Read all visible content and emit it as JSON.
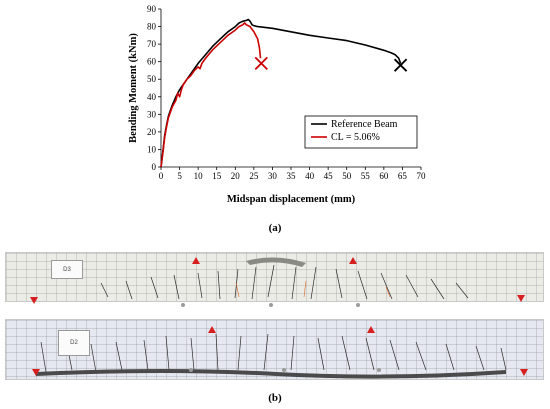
{
  "chart_data": {
    "type": "line",
    "xlabel": "Midspan displacement (mm)",
    "ylabel": "Bending Moment (kNm)",
    "xlim": [
      0,
      70
    ],
    "ylim": [
      0,
      90
    ],
    "xticks": [
      "0",
      "5",
      "10",
      "15",
      "20",
      "25",
      "30",
      "35",
      "40",
      "45",
      "50",
      "55",
      "60",
      "65",
      "70"
    ],
    "yticks": [
      "0",
      "10",
      "20",
      "30",
      "40",
      "50",
      "60",
      "70",
      "80",
      "90"
    ],
    "grid": false,
    "legend_position": "bottom-right",
    "series": [
      {
        "name": "Reference Beam",
        "color": "#000000",
        "x": [
          0,
          0.5,
          1,
          1.5,
          2,
          3,
          4,
          5,
          6,
          7,
          8,
          9,
          10,
          12,
          14,
          16,
          18,
          20,
          21,
          22,
          23,
          23.5,
          24,
          24.5,
          25,
          26,
          28,
          30,
          35,
          40,
          45,
          50,
          55,
          60,
          62,
          63,
          64,
          64.5
        ],
        "y": [
          0,
          9,
          18,
          24,
          29,
          35,
          40,
          44,
          47,
          50,
          53,
          56,
          59,
          64,
          69,
          73,
          77,
          80,
          82,
          83,
          83.5,
          84,
          83,
          81,
          80.5,
          80,
          79.5,
          79,
          77,
          75,
          73.5,
          72,
          69.5,
          66.5,
          65,
          64,
          62,
          59
        ]
      },
      {
        "name": "CL = 5.06%",
        "color": "#cc0000",
        "x": [
          0,
          0.5,
          1,
          1.5,
          2,
          3,
          4,
          4.5,
          5,
          5.5,
          6,
          7,
          8,
          9,
          10,
          10.5,
          11,
          12,
          14,
          16,
          18,
          20,
          21,
          22,
          22.5,
          23,
          24,
          25,
          26,
          26.5,
          26.8
        ],
        "y": [
          0,
          8,
          17,
          23,
          28,
          34,
          38,
          42,
          40,
          44,
          47,
          50,
          52,
          55,
          57,
          56,
          59,
          62,
          67,
          71,
          75,
          78,
          80,
          81,
          82,
          81,
          80,
          77,
          73,
          68,
          62
        ]
      }
    ],
    "failure_markers": [
      {
        "x": 64.5,
        "y": 58,
        "color": "#000000"
      },
      {
        "x": 27,
        "y": 59,
        "color": "#cc0000"
      }
    ]
  },
  "captions": {
    "a": "(a)",
    "b": "(b)"
  },
  "beam1": {
    "tag": "D3"
  },
  "beam2": {
    "tag": "D2"
  }
}
